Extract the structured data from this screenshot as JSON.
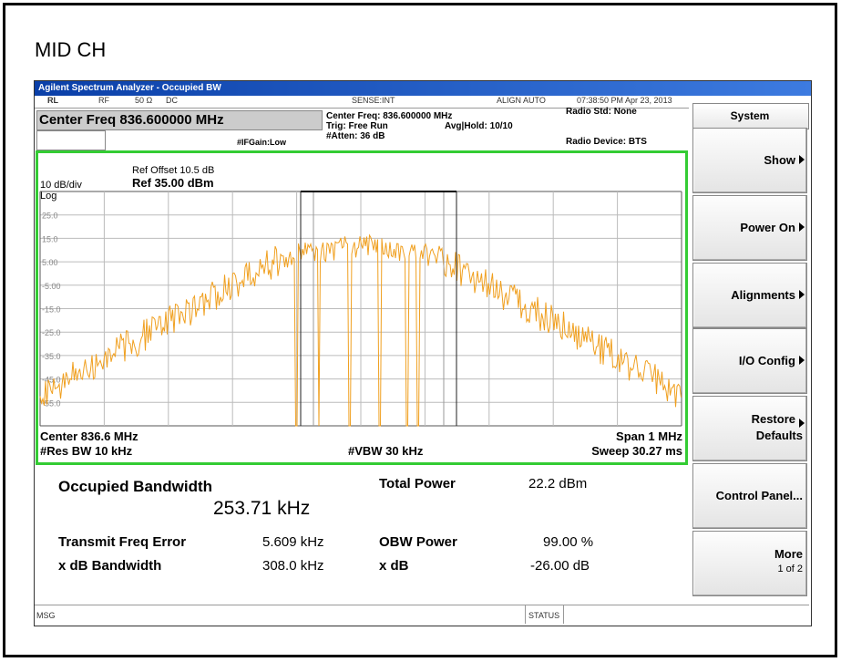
{
  "page": {
    "heading": "MID CH"
  },
  "window": {
    "title": "Agilent Spectrum Analyzer - Occupied BW",
    "status_bar": {
      "rl": "RL",
      "rf": "RF",
      "impedance": "50 Ω",
      "coupling": "DC",
      "sense": "SENSE:INT",
      "align": "ALIGN AUTO",
      "timestamp": "07:38:50 PM Apr 23, 2013"
    },
    "header": {
      "center_freq": "Center Freq 836.600000 MHz",
      "center_freq_info": "Center Freq: 836.600000 MHz",
      "trig": "Trig: Free Run",
      "avg_hold": "Avg|Hold: 10/10",
      "atten": "#Atten: 36 dB",
      "if_gain": "#IFGain:Low",
      "radio_std": "Radio Std: None",
      "radio_device": "Radio Device: BTS"
    },
    "graph": {
      "scale": "10 dB/div",
      "log": "Log",
      "ref_offset": "Ref Offset 10.5 dB",
      "ref": "Ref 35.00 dBm",
      "y_labels": [
        "25.0",
        "15.0",
        "5.00",
        "-5.00",
        "-15.0",
        "-25.0",
        "-35.0",
        "-45.0",
        "-55.0"
      ],
      "center": "Center  836.6 MHz",
      "span": "Span 1 MHz",
      "res_bw": "#Res BW  10 kHz",
      "vbw": "#VBW  30 kHz",
      "sweep": "Sweep  30.27 ms"
    },
    "results": {
      "occupied_bw_label": "Occupied Bandwidth",
      "occupied_bw_value": "253.71 kHz",
      "total_power_label": "Total Power",
      "total_power_value": "22.2 dBm",
      "freq_error_label": "Transmit Freq Error",
      "freq_error_value": "5.609 kHz",
      "obw_power_label": "OBW Power",
      "obw_power_value": "99.00 %",
      "xdb_bw_label": "x dB Bandwidth",
      "xdb_bw_value": "308.0 kHz",
      "xdb_label": "x dB",
      "xdb_value": "-26.00 dB"
    },
    "menu": {
      "title": "System",
      "buttons": [
        {
          "label": "Show"
        },
        {
          "label": "Power On"
        },
        {
          "label": "Alignments"
        },
        {
          "label": "I/O Config"
        },
        {
          "label": "Restore",
          "sublabel": "Defaults"
        },
        {
          "label": "Control Panel..."
        },
        {
          "label": "More",
          "sublabel": "1 of 2"
        }
      ]
    },
    "footer": {
      "msg": "MSG",
      "status": "STATUS"
    }
  }
}
